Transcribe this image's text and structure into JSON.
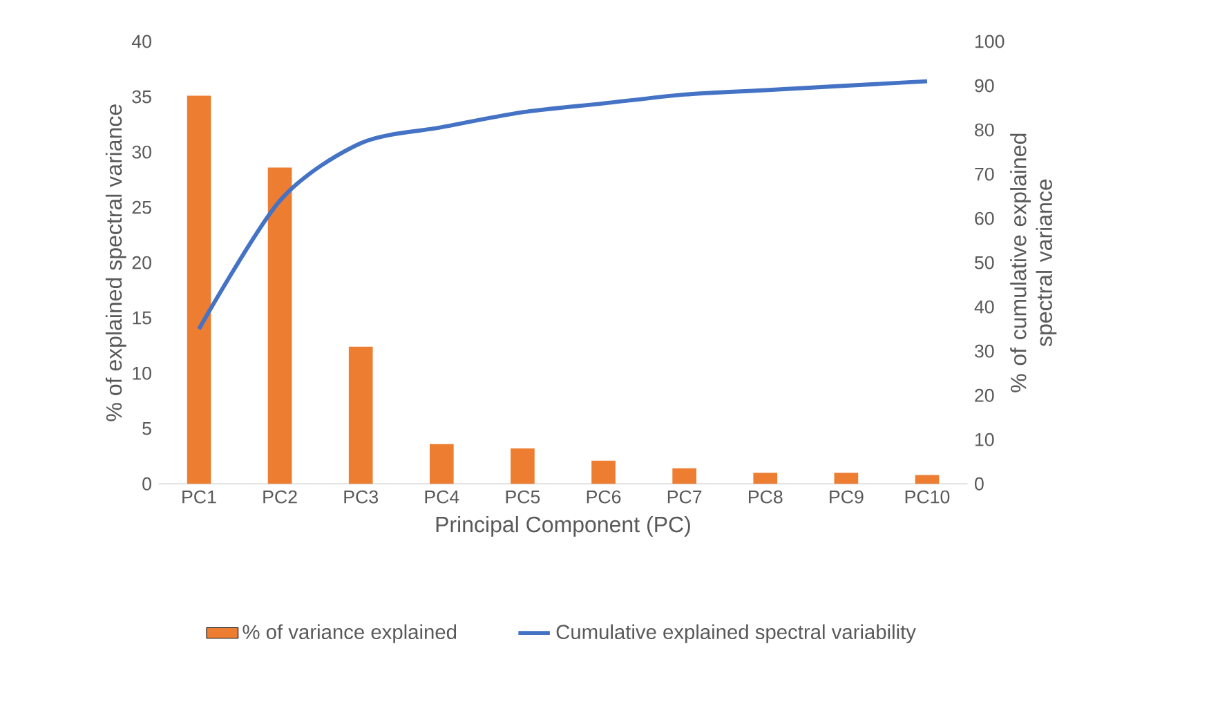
{
  "chart_data": {
    "type": "bar",
    "xlabel": "Principal Component (PC)",
    "ylabel": "% of explained spectral variance",
    "y2label": "% of cumulative explained spectral variance",
    "categories": [
      "PC1",
      "PC2",
      "PC3",
      "PC4",
      "PC5",
      "PC6",
      "PC7",
      "PC8",
      "PC9",
      "PC10"
    ],
    "series": [
      {
        "name": "% of variance explained",
        "color": "#ed7d31",
        "values": [
          35.1,
          28.6,
          12.4,
          3.6,
          3.2,
          2.1,
          1.4,
          1.0,
          1.0,
          0.8
        ]
      },
      {
        "name": "Cumulative explained spectral variability",
        "type": "line",
        "axis": "y2",
        "color": "#4472c4",
        "values": [
          35,
          64,
          77,
          80.6,
          84,
          86,
          88,
          89,
          90,
          91
        ]
      }
    ],
    "ylim": [
      0,
      40
    ],
    "yticks": [
      0,
      5,
      10,
      15,
      20,
      25,
      30,
      35,
      40
    ],
    "y2lim": [
      0,
      100
    ],
    "y2ticks": [
      0,
      10,
      20,
      30,
      40,
      50,
      60,
      70,
      80,
      90,
      100
    ],
    "grid": false,
    "legend": "bottom",
    "marker": "none",
    "line_style": "solid"
  }
}
